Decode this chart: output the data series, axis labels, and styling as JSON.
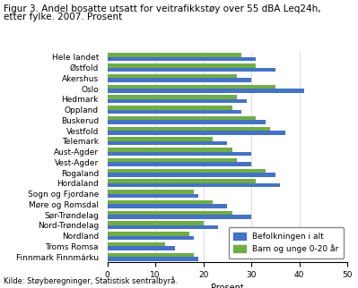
{
  "title_line1": "Figur 3. Andel bosatte utsatt for veitrafikkstøy over 55 dBA Leq24h,",
  "title_line2": "etter fylke. 2007. Prosent",
  "categories": [
    "Hele landet",
    "Østfold",
    "Akershus",
    "Oslo",
    "Hedmark",
    "Oppland",
    "Buskerud",
    "Vestfold",
    "Telemark",
    "Aust-Agder",
    "Vest-Agder",
    "Rogaland",
    "Hordaland",
    "Sogn og Fjordane",
    "Møre og Romsdal",
    "Sør-Trøndelag",
    "Nord-Trøndelag",
    "Nordland",
    "Troms Romsa",
    "Finnmark Finnmárku"
  ],
  "befolkning": [
    31,
    35,
    30,
    41,
    29,
    28,
    33,
    37,
    25,
    30,
    30,
    35,
    36,
    19,
    25,
    30,
    23,
    18,
    14,
    19
  ],
  "barn": [
    28,
    31,
    27,
    35,
    27,
    26,
    31,
    34,
    22,
    26,
    27,
    33,
    31,
    18,
    22,
    26,
    20,
    17,
    12,
    18
  ],
  "color_befolkning": "#4472C4",
  "color_barn": "#70AD47",
  "xlabel": "Prosent",
  "xlim": [
    0,
    50
  ],
  "xticks": [
    0,
    10,
    20,
    30,
    40,
    50
  ],
  "legend_labels": [
    "Befolkningen i alt",
    "Barn og unge 0-20 år"
  ],
  "source": "Kilde: Støyberegninger, Statistisk sentralbyrå.",
  "title_fontsize": 7.5,
  "label_fontsize": 7,
  "tick_fontsize": 6.5,
  "source_fontsize": 6
}
